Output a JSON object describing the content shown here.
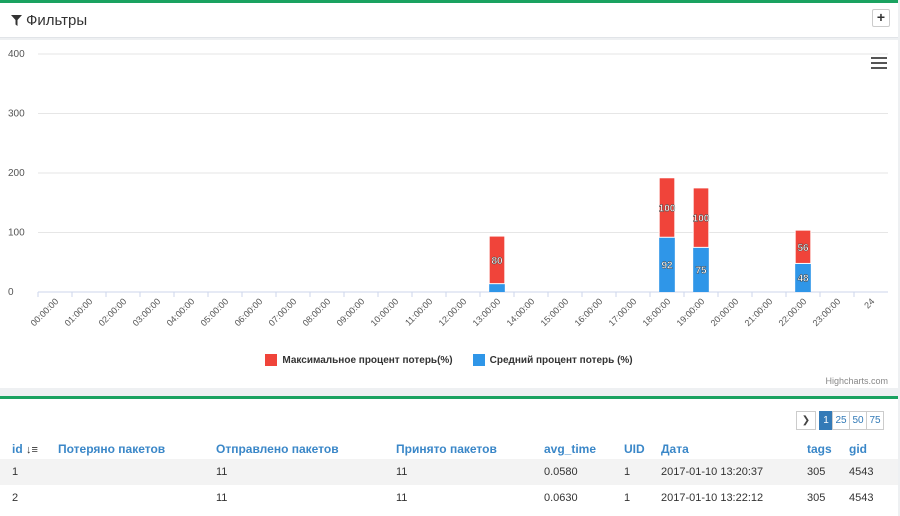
{
  "filters_panel": {
    "title": "Фильтры",
    "add_label": "+"
  },
  "chart_data": {
    "type": "bar",
    "stacked": true,
    "categories": [
      "00:00:00",
      "01:00:00",
      "02:00:00",
      "03:00:00",
      "04:00:00",
      "05:00:00",
      "06:00:00",
      "07:00:00",
      "08:00:00",
      "09:00:00",
      "10:00:00",
      "11:00:00",
      "12:00:00",
      "13:00:00",
      "14:00:00",
      "15:00:00",
      "16:00:00",
      "17:00:00",
      "18:00:00",
      "19:00:00",
      "20:00:00",
      "21:00:00",
      "22:00:00",
      "23:00:00",
      "24"
    ],
    "series": [
      {
        "name": "Максимальное процент потерь(%)",
        "color": "#f0443a",
        "values": [
          0,
          0,
          0,
          0,
          0,
          0,
          0,
          0,
          0,
          0,
          0,
          0,
          0,
          80,
          0,
          0,
          0,
          0,
          100,
          100,
          0,
          0,
          56,
          0,
          0
        ]
      },
      {
        "name": "Средний процент потерь (%)",
        "color": "#2f96e8",
        "values": [
          0,
          0,
          0,
          0,
          0,
          0,
          0,
          0,
          0,
          0,
          0,
          0,
          0,
          14,
          0,
          0,
          0,
          0,
          92,
          75,
          0,
          0,
          48,
          0,
          0
        ]
      }
    ],
    "data_labels": {
      "13": [
        "80",
        ""
      ],
      "18": [
        "100",
        "92"
      ],
      "19": [
        "100",
        "75"
      ],
      "22": [
        "56",
        "48"
      ]
    },
    "yticks": [
      "0",
      "100",
      "200",
      "300",
      "400"
    ],
    "ylim": [
      0,
      400
    ],
    "credits": "Highcharts.com"
  },
  "grid": {
    "pages": [
      "1",
      "25",
      "50",
      "75"
    ],
    "active_page": "1",
    "columns": [
      "id",
      "Потеряно пакетов",
      "Отправлено пакетов",
      "Принято пакетов",
      "avg_time",
      "UID",
      "Дата",
      "tags",
      "gid"
    ],
    "rows": [
      [
        "1",
        "",
        "11",
        "11",
        "0.0580",
        "1",
        "2017-01-10 13:20:37",
        "305",
        "4543"
      ],
      [
        "2",
        "",
        "11",
        "11",
        "0.0630",
        "1",
        "2017-01-10 13:22:12",
        "305",
        "4543"
      ]
    ]
  }
}
